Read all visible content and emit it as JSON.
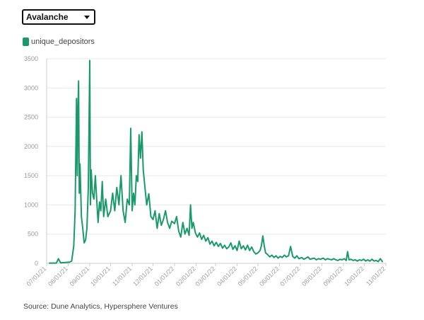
{
  "selector": {
    "value": "Avalanche"
  },
  "legend": {
    "label": "unique_depositors"
  },
  "colors": {
    "series": "#1a9a6c",
    "grid": "#e8e8e8",
    "axis": "#cccccc"
  },
  "source_text": "Source: Dune Analytics, Hypersphere Ventures",
  "chart_data": {
    "type": "line",
    "ylim": [
      0,
      3500
    ],
    "yticks": [
      0,
      500,
      1000,
      1500,
      2000,
      2500,
      3000,
      3500
    ],
    "xticks": [
      "07/01/21",
      "08/01/21",
      "09/01/21",
      "10/01/21",
      "11/01/21",
      "12/01/21",
      "01/01/22",
      "02/01/22",
      "03/01/22",
      "04/01/22",
      "05/01/22",
      "06/01/22",
      "07/01/22",
      "08/01/22",
      "09/01/22",
      "10/01/22",
      "11/01/22"
    ],
    "grid": true,
    "series": [
      {
        "name": "unique_depositors",
        "points": [
          [
            "2021-07-05",
            5
          ],
          [
            "2021-07-15",
            5
          ],
          [
            "2021-07-18",
            80
          ],
          [
            "2021-07-21",
            10
          ],
          [
            "2021-07-28",
            15
          ],
          [
            "2021-08-03",
            20
          ],
          [
            "2021-08-06",
            40
          ],
          [
            "2021-08-09",
            300
          ],
          [
            "2021-08-11",
            900
          ],
          [
            "2021-08-13",
            2820
          ],
          [
            "2021-08-14",
            1500
          ],
          [
            "2021-08-15",
            2600
          ],
          [
            "2021-08-16",
            3120
          ],
          [
            "2021-08-17",
            1200
          ],
          [
            "2021-08-18",
            1700
          ],
          [
            "2021-08-20",
            800
          ],
          [
            "2021-08-22",
            600
          ],
          [
            "2021-08-24",
            350
          ],
          [
            "2021-08-26",
            400
          ],
          [
            "2021-08-28",
            600
          ],
          [
            "2021-08-30",
            1300
          ],
          [
            "2021-09-01",
            3470
          ],
          [
            "2021-09-02",
            1000
          ],
          [
            "2021-09-03",
            1600
          ],
          [
            "2021-09-05",
            1200
          ],
          [
            "2021-09-07",
            1100
          ],
          [
            "2021-09-09",
            1500
          ],
          [
            "2021-09-11",
            1100
          ],
          [
            "2021-09-13",
            700
          ],
          [
            "2021-09-15",
            1050
          ],
          [
            "2021-09-17",
            900
          ],
          [
            "2021-09-19",
            1400
          ],
          [
            "2021-09-21",
            800
          ],
          [
            "2021-09-24",
            1100
          ],
          [
            "2021-09-27",
            800
          ],
          [
            "2021-10-01",
            900
          ],
          [
            "2021-10-04",
            1200
          ],
          [
            "2021-10-07",
            900
          ],
          [
            "2021-10-10",
            1300
          ],
          [
            "2021-10-13",
            1000
          ],
          [
            "2021-10-16",
            1500
          ],
          [
            "2021-10-19",
            900
          ],
          [
            "2021-10-22",
            700
          ],
          [
            "2021-10-25",
            1100
          ],
          [
            "2021-10-28",
            1000
          ],
          [
            "2021-10-30",
            2310
          ],
          [
            "2021-11-01",
            900
          ],
          [
            "2021-11-03",
            1200
          ],
          [
            "2021-11-05",
            1000
          ],
          [
            "2021-11-07",
            1500
          ],
          [
            "2021-11-09",
            1400
          ],
          [
            "2021-11-11",
            2200
          ],
          [
            "2021-11-13",
            1800
          ],
          [
            "2021-11-15",
            2250
          ],
          [
            "2021-11-17",
            1600
          ],
          [
            "2021-11-19",
            1350
          ],
          [
            "2021-11-22",
            1000
          ],
          [
            "2021-11-25",
            1190
          ],
          [
            "2021-11-28",
            800
          ],
          [
            "2021-12-01",
            750
          ],
          [
            "2021-12-04",
            900
          ],
          [
            "2021-12-07",
            600
          ],
          [
            "2021-12-10",
            850
          ],
          [
            "2021-12-13",
            650
          ],
          [
            "2021-12-16",
            750
          ],
          [
            "2021-12-19",
            900
          ],
          [
            "2021-12-22",
            700
          ],
          [
            "2021-12-25",
            600
          ],
          [
            "2021-12-28",
            720
          ],
          [
            "2022-01-01",
            680
          ],
          [
            "2022-01-04",
            800
          ],
          [
            "2022-01-07",
            550
          ],
          [
            "2022-01-10",
            450
          ],
          [
            "2022-01-13",
            700
          ],
          [
            "2022-01-16",
            500
          ],
          [
            "2022-01-19",
            600
          ],
          [
            "2022-01-22",
            480
          ],
          [
            "2022-01-24",
            1000
          ],
          [
            "2022-01-26",
            600
          ],
          [
            "2022-01-28",
            700
          ],
          [
            "2022-01-31",
            520
          ],
          [
            "2022-02-03",
            450
          ],
          [
            "2022-02-06",
            520
          ],
          [
            "2022-02-09",
            410
          ],
          [
            "2022-02-12",
            480
          ],
          [
            "2022-02-15",
            380
          ],
          [
            "2022-02-18",
            440
          ],
          [
            "2022-02-21",
            330
          ],
          [
            "2022-02-24",
            380
          ],
          [
            "2022-02-27",
            300
          ],
          [
            "2022-03-02",
            360
          ],
          [
            "2022-03-05",
            290
          ],
          [
            "2022-03-08",
            340
          ],
          [
            "2022-03-11",
            260
          ],
          [
            "2022-03-14",
            310
          ],
          [
            "2022-03-17",
            250
          ],
          [
            "2022-03-20",
            280
          ],
          [
            "2022-03-23",
            350
          ],
          [
            "2022-03-26",
            240
          ],
          [
            "2022-03-29",
            300
          ],
          [
            "2022-04-01",
            220
          ],
          [
            "2022-04-04",
            380
          ],
          [
            "2022-04-07",
            250
          ],
          [
            "2022-04-10",
            300
          ],
          [
            "2022-04-13",
            230
          ],
          [
            "2022-04-16",
            310
          ],
          [
            "2022-04-19",
            220
          ],
          [
            "2022-04-22",
            280
          ],
          [
            "2022-04-25",
            200
          ],
          [
            "2022-04-28",
            160
          ],
          [
            "2022-05-01",
            180
          ],
          [
            "2022-05-04",
            220
          ],
          [
            "2022-05-06",
            300
          ],
          [
            "2022-05-08",
            470
          ],
          [
            "2022-05-10",
            300
          ],
          [
            "2022-05-12",
            180
          ],
          [
            "2022-05-15",
            150
          ],
          [
            "2022-05-18",
            110
          ],
          [
            "2022-05-21",
            140
          ],
          [
            "2022-05-24",
            100
          ],
          [
            "2022-05-27",
            130
          ],
          [
            "2022-05-30",
            90
          ],
          [
            "2022-06-02",
            120
          ],
          [
            "2022-06-05",
            100
          ],
          [
            "2022-06-08",
            140
          ],
          [
            "2022-06-11",
            110
          ],
          [
            "2022-06-14",
            130
          ],
          [
            "2022-06-17",
            290
          ],
          [
            "2022-06-20",
            120
          ],
          [
            "2022-06-23",
            90
          ],
          [
            "2022-06-26",
            130
          ],
          [
            "2022-06-29",
            80
          ],
          [
            "2022-07-03",
            100
          ],
          [
            "2022-07-06",
            70
          ],
          [
            "2022-07-09",
            90
          ],
          [
            "2022-07-12",
            110
          ],
          [
            "2022-07-15",
            70
          ],
          [
            "2022-07-18",
            80
          ],
          [
            "2022-07-21",
            90
          ],
          [
            "2022-07-24",
            60
          ],
          [
            "2022-07-27",
            80
          ],
          [
            "2022-07-30",
            70
          ],
          [
            "2022-08-03",
            90
          ],
          [
            "2022-08-06",
            60
          ],
          [
            "2022-08-09",
            80
          ],
          [
            "2022-08-12",
            70
          ],
          [
            "2022-08-15",
            60
          ],
          [
            "2022-08-18",
            80
          ],
          [
            "2022-08-21",
            60
          ],
          [
            "2022-08-24",
            50
          ],
          [
            "2022-08-27",
            70
          ],
          [
            "2022-08-30",
            60
          ],
          [
            "2022-09-02",
            80
          ],
          [
            "2022-09-05",
            50
          ],
          [
            "2022-09-07",
            200
          ],
          [
            "2022-09-09",
            60
          ],
          [
            "2022-09-12",
            70
          ],
          [
            "2022-09-15",
            50
          ],
          [
            "2022-09-18",
            60
          ],
          [
            "2022-09-21",
            40
          ],
          [
            "2022-09-24",
            60
          ],
          [
            "2022-09-27",
            50
          ],
          [
            "2022-09-30",
            70
          ],
          [
            "2022-10-03",
            40
          ],
          [
            "2022-10-06",
            60
          ],
          [
            "2022-10-09",
            40
          ],
          [
            "2022-10-12",
            70
          ],
          [
            "2022-10-15",
            40
          ],
          [
            "2022-10-18",
            50
          ],
          [
            "2022-10-21",
            30
          ],
          [
            "2022-10-24",
            80
          ],
          [
            "2022-10-27",
            30
          ]
        ]
      }
    ]
  }
}
